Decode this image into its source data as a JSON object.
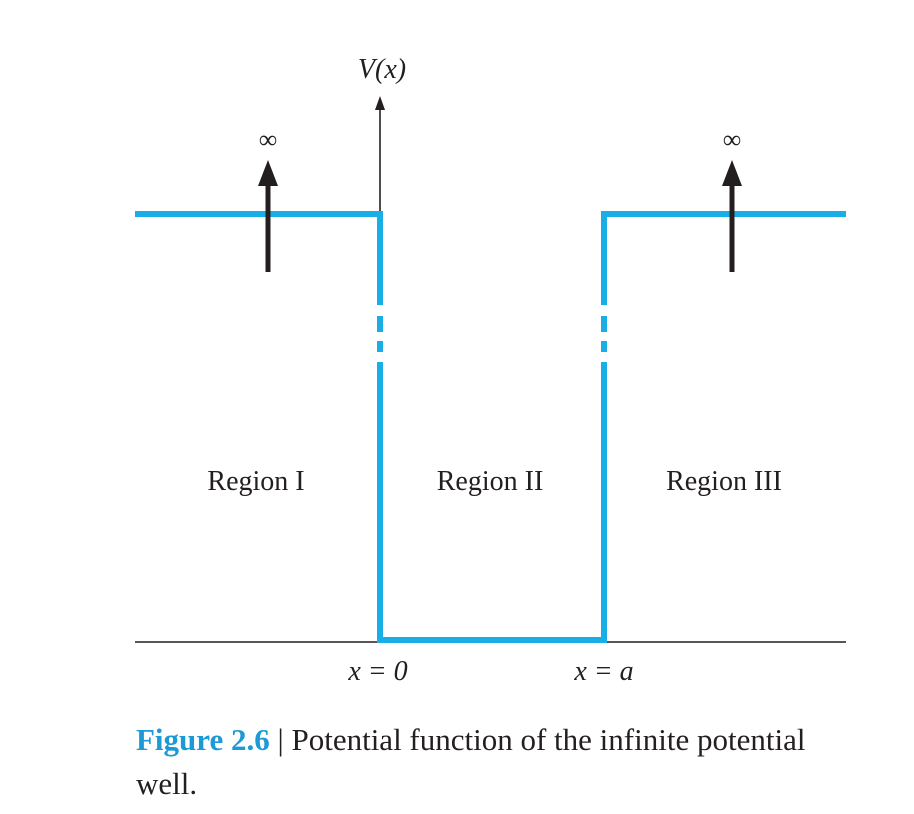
{
  "diagram": {
    "y_axis_label": "V(x)",
    "infinity_symbol": "∞",
    "regions": [
      "Region I",
      "Region II",
      "Region III"
    ],
    "boundary_labels": [
      "x = 0",
      "x = a"
    ],
    "colors": {
      "potential": "#1aaee8",
      "ink": "#231f20"
    }
  },
  "caption": {
    "figure_number": "Figure 2.6",
    "separator": "|",
    "text": "Potential function of the infinite potential well."
  }
}
